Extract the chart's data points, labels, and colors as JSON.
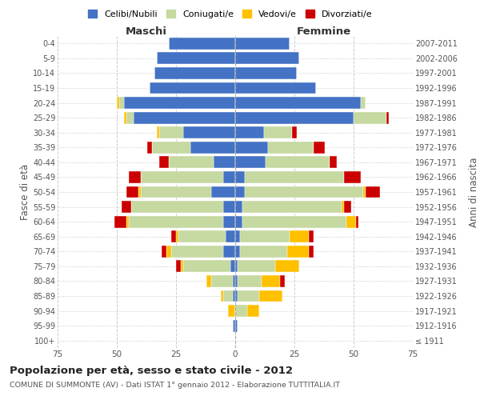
{
  "age_groups": [
    "100+",
    "95-99",
    "90-94",
    "85-89",
    "80-84",
    "75-79",
    "70-74",
    "65-69",
    "60-64",
    "55-59",
    "50-54",
    "45-49",
    "40-44",
    "35-39",
    "30-34",
    "25-29",
    "20-24",
    "15-19",
    "10-14",
    "5-9",
    "0-4"
  ],
  "birth_years": [
    "≤ 1911",
    "1912-1916",
    "1917-1921",
    "1922-1926",
    "1927-1931",
    "1932-1936",
    "1937-1941",
    "1942-1946",
    "1947-1951",
    "1952-1956",
    "1957-1961",
    "1962-1966",
    "1967-1971",
    "1972-1976",
    "1977-1981",
    "1982-1986",
    "1987-1991",
    "1992-1996",
    "1997-2001",
    "2002-2006",
    "2007-2011"
  ],
  "colors": {
    "celibi": "#4472c4",
    "coniugati": "#c5d9a0",
    "vedovi": "#ffc000",
    "divorziati": "#cc0000"
  },
  "maschi": {
    "celibi": [
      0,
      1,
      0,
      1,
      1,
      2,
      5,
      4,
      5,
      5,
      10,
      5,
      9,
      19,
      22,
      43,
      47,
      36,
      34,
      33,
      28
    ],
    "coniugati": [
      0,
      0,
      0,
      4,
      9,
      20,
      22,
      20,
      40,
      39,
      30,
      35,
      19,
      16,
      10,
      3,
      2,
      0,
      0,
      0,
      0
    ],
    "vedovi": [
      0,
      0,
      3,
      1,
      2,
      1,
      2,
      1,
      1,
      0,
      1,
      0,
      0,
      0,
      1,
      1,
      1,
      0,
      0,
      0,
      0
    ],
    "divorziati": [
      0,
      0,
      0,
      0,
      0,
      2,
      2,
      2,
      5,
      4,
      5,
      5,
      4,
      2,
      0,
      0,
      0,
      0,
      0,
      0,
      0
    ]
  },
  "femmine": {
    "nubili": [
      0,
      1,
      0,
      1,
      1,
      1,
      2,
      2,
      3,
      3,
      4,
      4,
      13,
      14,
      12,
      50,
      53,
      34,
      26,
      27,
      23
    ],
    "coniugate": [
      0,
      0,
      5,
      9,
      10,
      16,
      20,
      21,
      44,
      42,
      50,
      42,
      27,
      19,
      12,
      14,
      2,
      0,
      0,
      0,
      0
    ],
    "vedove": [
      0,
      0,
      5,
      10,
      8,
      10,
      9,
      8,
      4,
      1,
      1,
      0,
      0,
      0,
      0,
      0,
      0,
      0,
      0,
      0,
      0
    ],
    "divorziate": [
      0,
      0,
      0,
      0,
      2,
      0,
      2,
      2,
      1,
      3,
      6,
      7,
      3,
      5,
      2,
      1,
      0,
      0,
      0,
      0,
      0
    ]
  },
  "xlim": 75,
  "title": "Popolazione per età, sesso e stato civile - 2012",
  "subtitle": "COMUNE DI SUMMONTE (AV) - Dati ISTAT 1° gennaio 2012 - Elaborazione TUTTITALIA.IT",
  "xlabel_left": "Maschi",
  "xlabel_right": "Femmine",
  "ylabel": "Fasce di età",
  "ylabel_right": "Anni di nascita",
  "legend_labels": [
    "Celibi/Nubili",
    "Coniugati/e",
    "Vedovi/e",
    "Divorziati/e"
  ],
  "bg_color": "#ffffff",
  "grid_color": "#cccccc"
}
